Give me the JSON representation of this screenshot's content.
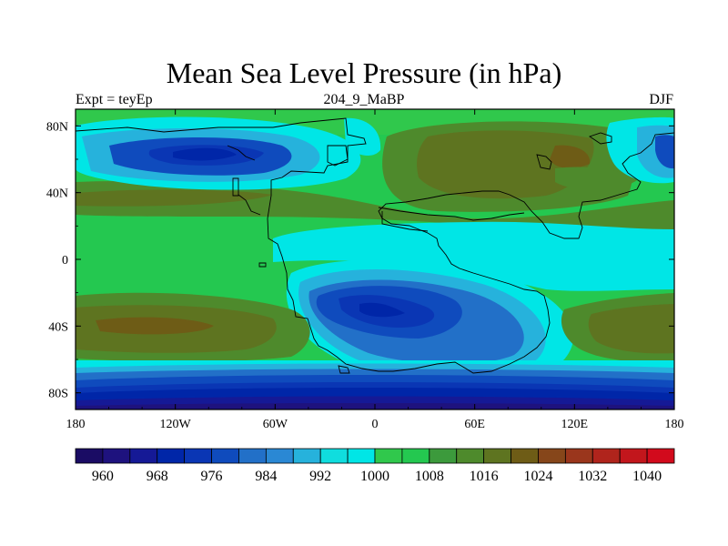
{
  "title": "Mean Sea Level Pressure (in hPa)",
  "subtitle_left": "Expt = teyEp",
  "subtitle_center": "204_9_MaBP",
  "subtitle_right": "DJF",
  "map": {
    "projection": "cylindrical equidistant",
    "variable": "mean sea level pressure",
    "units": "hPa",
    "lon_range": [
      -180,
      180
    ],
    "lat_range": [
      -90,
      90
    ],
    "x_ticks": [
      {
        "value": -180,
        "label": "180"
      },
      {
        "value": -120,
        "label": "120W"
      },
      {
        "value": -60,
        "label": "60W"
      },
      {
        "value": 0,
        "label": "0"
      },
      {
        "value": 60,
        "label": "60E"
      },
      {
        "value": 120,
        "label": "120E"
      },
      {
        "value": 180,
        "label": "180"
      }
    ],
    "y_ticks": [
      {
        "value": 80,
        "label": "80N"
      },
      {
        "value": 40,
        "label": "40N"
      },
      {
        "value": 0,
        "label": "0"
      },
      {
        "value": -40,
        "label": "40S"
      },
      {
        "value": -80,
        "label": "80S"
      }
    ],
    "ocean_background_level": "1008-1012",
    "pressure_features": [
      {
        "name": "north-pacific-low",
        "lon": -100,
        "lat": 62,
        "pressure_hpa": 974
      },
      {
        "name": "north-atlantic-low",
        "lon": 178,
        "lat": 64,
        "pressure_hpa": 988
      },
      {
        "name": "tethys-low",
        "lon": 15,
        "lat": -32,
        "pressure_hpa": 972
      },
      {
        "name": "asian-high",
        "lon": 30,
        "lat": 55,
        "pressure_hpa": 1018
      },
      {
        "name": "south-pacific-high",
        "lon": -155,
        "lat": -40,
        "pressure_hpa": 1024
      },
      {
        "name": "south-indian-high",
        "lon": 150,
        "lat": -38,
        "pressure_hpa": 1018
      },
      {
        "name": "north-subtropical-high",
        "lon": -120,
        "lat": 32,
        "pressure_hpa": 1016
      },
      {
        "name": "polar-trough",
        "lon": 0,
        "lat": -85,
        "pressure_hpa": 960
      }
    ]
  },
  "colorbar": {
    "levels": [
      958,
      960,
      962,
      964,
      966,
      968,
      970,
      972,
      974,
      976,
      978,
      980,
      982,
      984,
      986,
      988,
      990,
      992,
      994,
      996,
      998,
      1000,
      1002,
      1004,
      1006,
      1008,
      1010,
      1012,
      1014,
      1016,
      1018,
      1020,
      1022,
      1024,
      1026,
      1028,
      1030,
      1032,
      1034,
      1036,
      1038,
      1040,
      1042
    ],
    "colors": [
      "#1a0c64",
      "#1e127e",
      "#151996",
      "#0026a8",
      "#0a36b4",
      "#0f4bbd",
      "#2270c8",
      "#2a88d4",
      "#26b2dc",
      "#10ddde",
      "#00e6e6",
      "#30c84c",
      "#24c850",
      "#3c9a3c",
      "#4e8a2c",
      "#5e7420",
      "#6e5c16",
      "#86461a",
      "#9a361c",
      "#b0241c",
      "#c2161c",
      "#d20a1c"
    ],
    "labels": [
      {
        "index": 1,
        "label": "960"
      },
      {
        "index": 3,
        "label": "968"
      },
      {
        "index": 5,
        "label": "976"
      },
      {
        "index": 7,
        "label": "984"
      },
      {
        "index": 9,
        "label": "992"
      },
      {
        "index": 11,
        "label": "1000"
      },
      {
        "index": 13,
        "label": "1008"
      },
      {
        "index": 15,
        "label": "1016"
      },
      {
        "index": 17,
        "label": "1024"
      },
      {
        "index": 19,
        "label": "1032"
      },
      {
        "index": 21,
        "label": "1040"
      }
    ]
  }
}
